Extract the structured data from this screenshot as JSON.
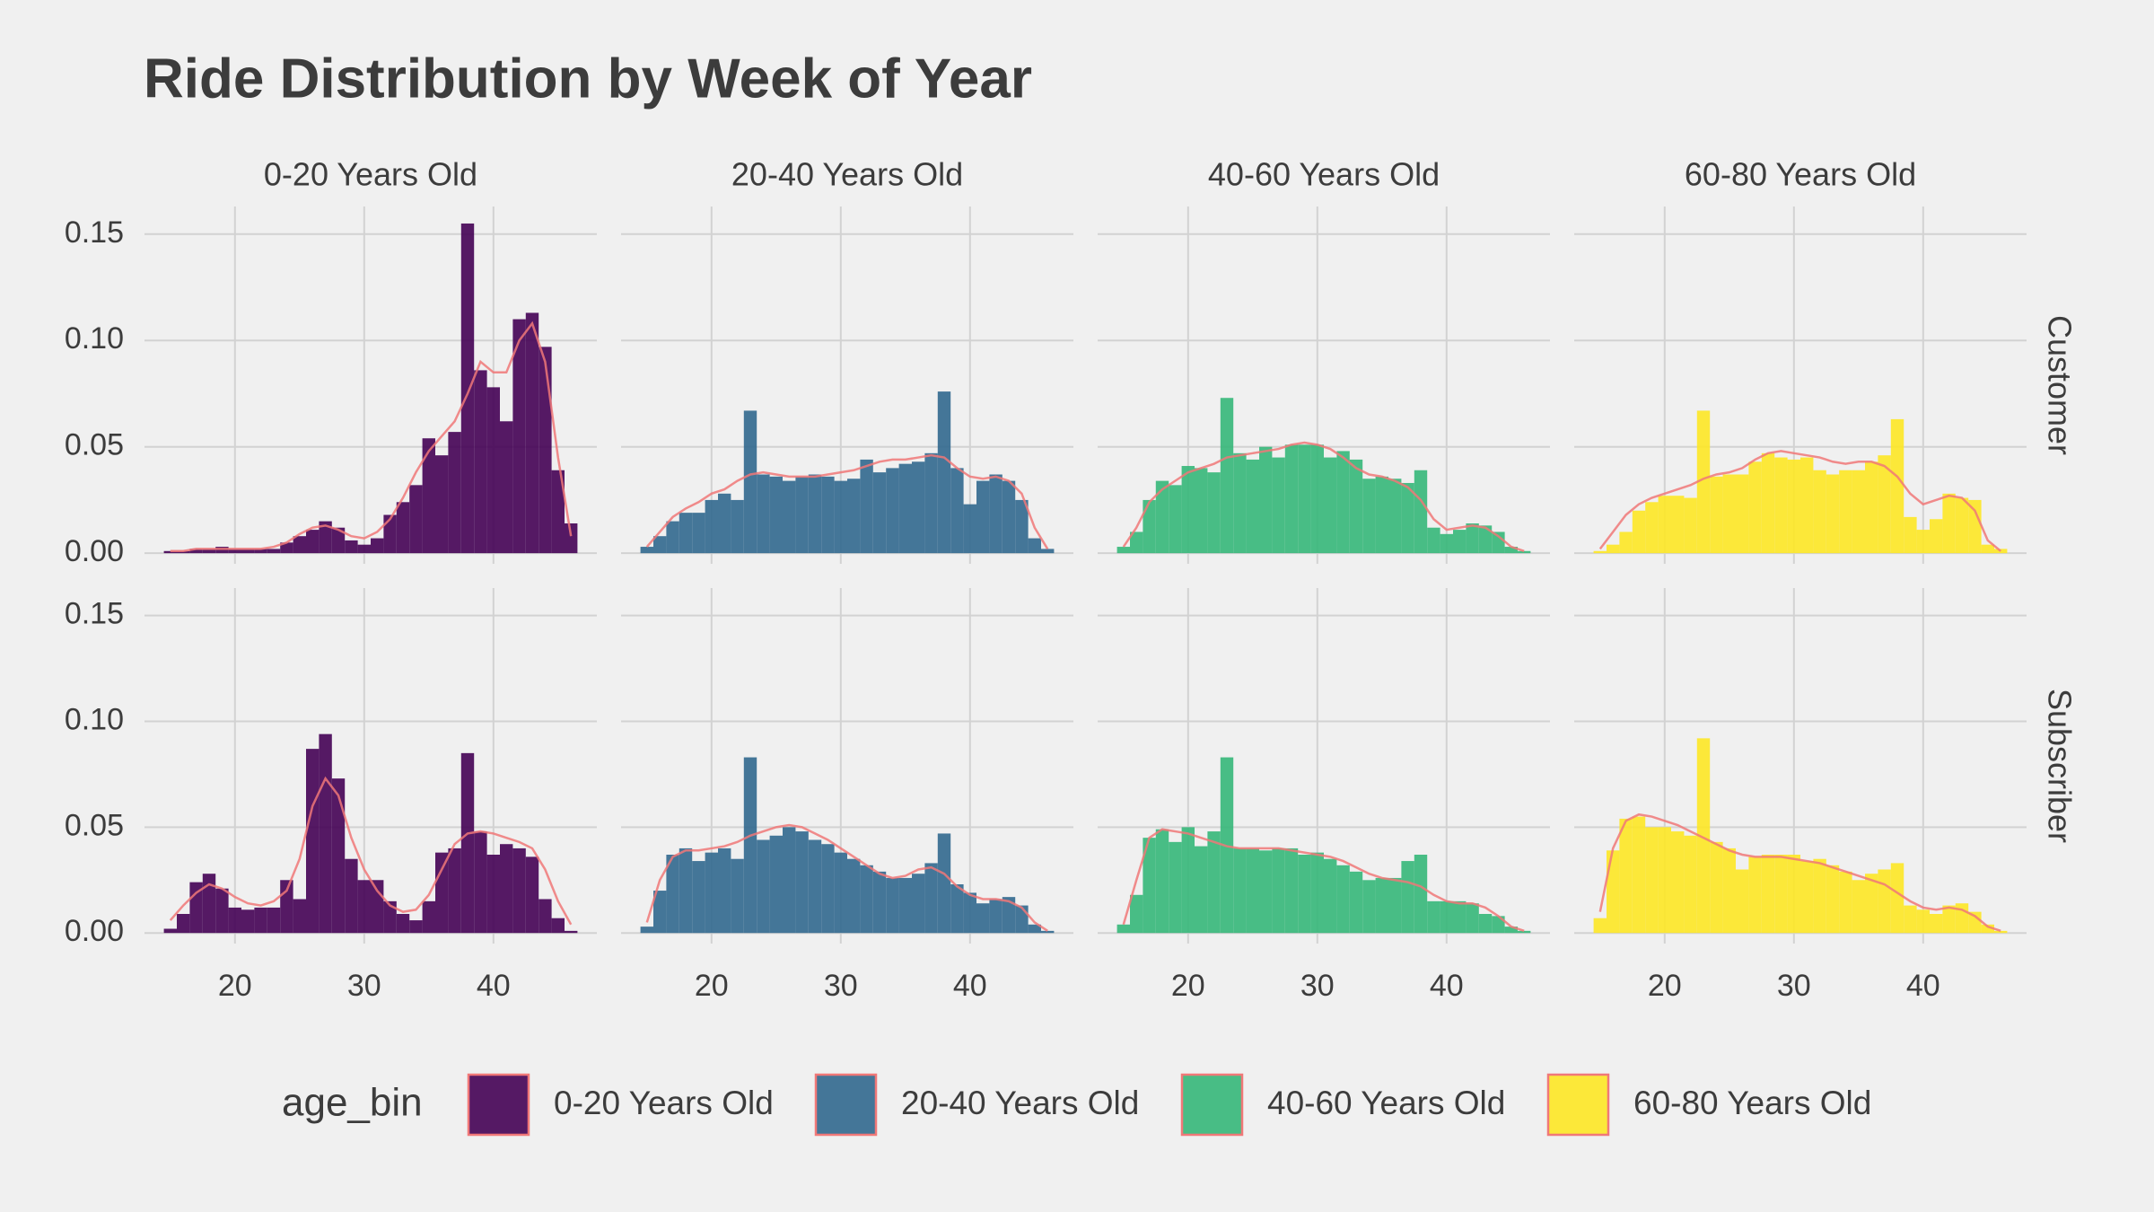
{
  "chart_data": {
    "type": "histogram",
    "title": "Ride Distribution by Week of Year",
    "legend_title": "age_bin",
    "rows": [
      "Customer",
      "Subscriber"
    ],
    "bins": [
      14.5,
      15.5,
      16.5,
      17.5,
      18.5,
      19.5,
      20.5,
      21.5,
      22.5,
      23.5,
      24.5,
      25.5,
      26.5,
      27.5,
      28.5,
      29.5,
      30.5,
      31.5,
      32.5,
      33.5,
      34.5,
      35.5,
      36.5,
      37.5,
      38.5,
      39.5,
      40.5,
      41.5,
      42.5,
      43.5,
      44.5,
      45.5,
      46.5
    ],
    "density_x": [
      15,
      16,
      17,
      18,
      19,
      20,
      21,
      22,
      23,
      24,
      25,
      26,
      27,
      28,
      29,
      30,
      31,
      32,
      33,
      34,
      35,
      36,
      37,
      38,
      39,
      40,
      41,
      42,
      43,
      44,
      45,
      46
    ],
    "density_color": "#f07878",
    "xlim": [
      13,
      48
    ],
    "xticks": [
      20,
      30,
      40
    ],
    "ylim": [
      -0.005,
      0.163
    ],
    "yticks": [
      {
        "value": 0,
        "label": "0.00"
      },
      0.05,
      {
        "value": 0.1,
        "label": "0.10"
      },
      0.15
    ],
    "grid": true,
    "legend_position": "bottom",
    "series": [
      {
        "name": "0-20 Years Old",
        "color": "#440154",
        "values": [
          [
            0.001,
            0.001,
            0.002,
            0.002,
            0.003,
            0.002,
            0.002,
            0.002,
            0.002,
            0.005,
            0.008,
            0.011,
            0.015,
            0.012,
            0.006,
            0.004,
            0.007,
            0.018,
            0.024,
            0.032,
            0.054,
            0.046,
            0.057,
            0.155,
            0.086,
            0.078,
            0.062,
            0.11,
            0.113,
            0.097,
            0.039,
            0.014
          ],
          [
            0.002,
            0.009,
            0.024,
            0.028,
            0.021,
            0.012,
            0.011,
            0.012,
            0.012,
            0.025,
            0.016,
            0.087,
            0.094,
            0.073,
            0.035,
            0.025,
            0.025,
            0.015,
            0.009,
            0.006,
            0.015,
            0.038,
            0.04,
            0.085,
            0.048,
            0.037,
            0.042,
            0.04,
            0.036,
            0.016,
            0.007,
            0.001
          ]
        ],
        "density": [
          [
            0.001,
            0.001,
            0.002,
            0.002,
            0.002,
            0.002,
            0.002,
            0.002,
            0.003,
            0.005,
            0.009,
            0.012,
            0.013,
            0.011,
            0.008,
            0.007,
            0.01,
            0.016,
            0.026,
            0.038,
            0.048,
            0.055,
            0.062,
            0.075,
            0.09,
            0.085,
            0.085,
            0.1,
            0.108,
            0.09,
            0.045,
            0.008
          ],
          [
            0.006,
            0.013,
            0.019,
            0.023,
            0.021,
            0.017,
            0.014,
            0.013,
            0.015,
            0.02,
            0.035,
            0.06,
            0.073,
            0.065,
            0.045,
            0.03,
            0.02,
            0.013,
            0.01,
            0.011,
            0.018,
            0.03,
            0.042,
            0.047,
            0.048,
            0.047,
            0.045,
            0.043,
            0.04,
            0.03,
            0.015,
            0.004
          ]
        ]
      },
      {
        "name": "20-40 Years Old",
        "color": "#31688e",
        "values": [
          [
            0.003,
            0.008,
            0.015,
            0.019,
            0.019,
            0.025,
            0.028,
            0.025,
            0.067,
            0.037,
            0.036,
            0.034,
            0.036,
            0.037,
            0.036,
            0.034,
            0.035,
            0.044,
            0.038,
            0.04,
            0.042,
            0.043,
            0.047,
            0.076,
            0.04,
            0.023,
            0.034,
            0.037,
            0.034,
            0.025,
            0.007,
            0.002
          ],
          [
            0.003,
            0.02,
            0.037,
            0.04,
            0.034,
            0.038,
            0.04,
            0.035,
            0.083,
            0.044,
            0.046,
            0.05,
            0.048,
            0.044,
            0.042,
            0.038,
            0.035,
            0.032,
            0.029,
            0.026,
            0.026,
            0.028,
            0.033,
            0.047,
            0.023,
            0.019,
            0.014,
            0.016,
            0.017,
            0.013,
            0.004,
            0.001
          ]
        ],
        "density": [
          [
            0.003,
            0.01,
            0.017,
            0.021,
            0.024,
            0.028,
            0.03,
            0.034,
            0.037,
            0.038,
            0.037,
            0.036,
            0.036,
            0.036,
            0.037,
            0.038,
            0.039,
            0.041,
            0.043,
            0.044,
            0.044,
            0.045,
            0.046,
            0.045,
            0.04,
            0.036,
            0.035,
            0.036,
            0.034,
            0.028,
            0.012,
            0.002
          ],
          [
            0.005,
            0.025,
            0.036,
            0.039,
            0.039,
            0.04,
            0.041,
            0.043,
            0.046,
            0.048,
            0.05,
            0.051,
            0.05,
            0.047,
            0.044,
            0.04,
            0.036,
            0.032,
            0.028,
            0.026,
            0.027,
            0.03,
            0.031,
            0.028,
            0.022,
            0.018,
            0.016,
            0.016,
            0.015,
            0.012,
            0.005,
            0.001
          ]
        ]
      },
      {
        "name": "40-60 Years Old",
        "color": "#35b779",
        "values": [
          [
            0.003,
            0.01,
            0.025,
            0.034,
            0.032,
            0.041,
            0.04,
            0.038,
            0.073,
            0.047,
            0.044,
            0.05,
            0.045,
            0.051,
            0.051,
            0.051,
            0.045,
            0.048,
            0.044,
            0.035,
            0.036,
            0.035,
            0.033,
            0.039,
            0.012,
            0.009,
            0.011,
            0.014,
            0.013,
            0.01,
            0.003,
            0.001
          ],
          [
            0.004,
            0.018,
            0.045,
            0.049,
            0.043,
            0.05,
            0.041,
            0.048,
            0.083,
            0.04,
            0.04,
            0.039,
            0.04,
            0.04,
            0.037,
            0.038,
            0.035,
            0.032,
            0.029,
            0.025,
            0.026,
            0.026,
            0.034,
            0.037,
            0.015,
            0.015,
            0.015,
            0.014,
            0.009,
            0.008,
            0.003,
            0.001
          ]
        ],
        "density": [
          [
            0.003,
            0.012,
            0.024,
            0.03,
            0.034,
            0.038,
            0.04,
            0.042,
            0.045,
            0.046,
            0.047,
            0.048,
            0.049,
            0.051,
            0.052,
            0.051,
            0.049,
            0.045,
            0.04,
            0.037,
            0.036,
            0.034,
            0.031,
            0.025,
            0.016,
            0.011,
            0.012,
            0.013,
            0.012,
            0.008,
            0.003,
            0.001
          ],
          [
            0.004,
            0.025,
            0.045,
            0.049,
            0.048,
            0.047,
            0.045,
            0.043,
            0.041,
            0.04,
            0.04,
            0.04,
            0.04,
            0.039,
            0.038,
            0.037,
            0.036,
            0.034,
            0.031,
            0.028,
            0.026,
            0.025,
            0.024,
            0.022,
            0.018,
            0.015,
            0.014,
            0.014,
            0.012,
            0.008,
            0.003,
            0.001
          ]
        ]
      },
      {
        "name": "60-80 Years Old",
        "color": "#fde725",
        "values": [
          [
            0.001,
            0.004,
            0.01,
            0.02,
            0.024,
            0.027,
            0.027,
            0.026,
            0.067,
            0.036,
            0.037,
            0.037,
            0.043,
            0.047,
            0.045,
            0.044,
            0.045,
            0.039,
            0.037,
            0.039,
            0.039,
            0.043,
            0.046,
            0.063,
            0.017,
            0.011,
            0.016,
            0.028,
            0.026,
            0.025,
            0.004,
            0.002
          ],
          [
            0.007,
            0.039,
            0.054,
            0.055,
            0.05,
            0.05,
            0.048,
            0.046,
            0.092,
            0.043,
            0.04,
            0.03,
            0.036,
            0.037,
            0.037,
            0.037,
            0.034,
            0.035,
            0.032,
            0.029,
            0.025,
            0.028,
            0.03,
            0.033,
            0.013,
            0.011,
            0.009,
            0.013,
            0.014,
            0.01,
            0.004,
            0.001
          ]
        ],
        "density": [
          [
            0.002,
            0.01,
            0.018,
            0.023,
            0.026,
            0.028,
            0.03,
            0.032,
            0.035,
            0.037,
            0.038,
            0.04,
            0.044,
            0.047,
            0.048,
            0.047,
            0.046,
            0.045,
            0.043,
            0.042,
            0.043,
            0.043,
            0.041,
            0.036,
            0.028,
            0.023,
            0.025,
            0.027,
            0.026,
            0.02,
            0.006,
            0.001
          ],
          [
            0.01,
            0.04,
            0.053,
            0.056,
            0.055,
            0.053,
            0.051,
            0.048,
            0.045,
            0.042,
            0.039,
            0.037,
            0.036,
            0.036,
            0.036,
            0.035,
            0.034,
            0.033,
            0.031,
            0.029,
            0.027,
            0.025,
            0.023,
            0.019,
            0.015,
            0.012,
            0.011,
            0.012,
            0.011,
            0.008,
            0.003,
            0.001
          ]
        ]
      }
    ]
  }
}
